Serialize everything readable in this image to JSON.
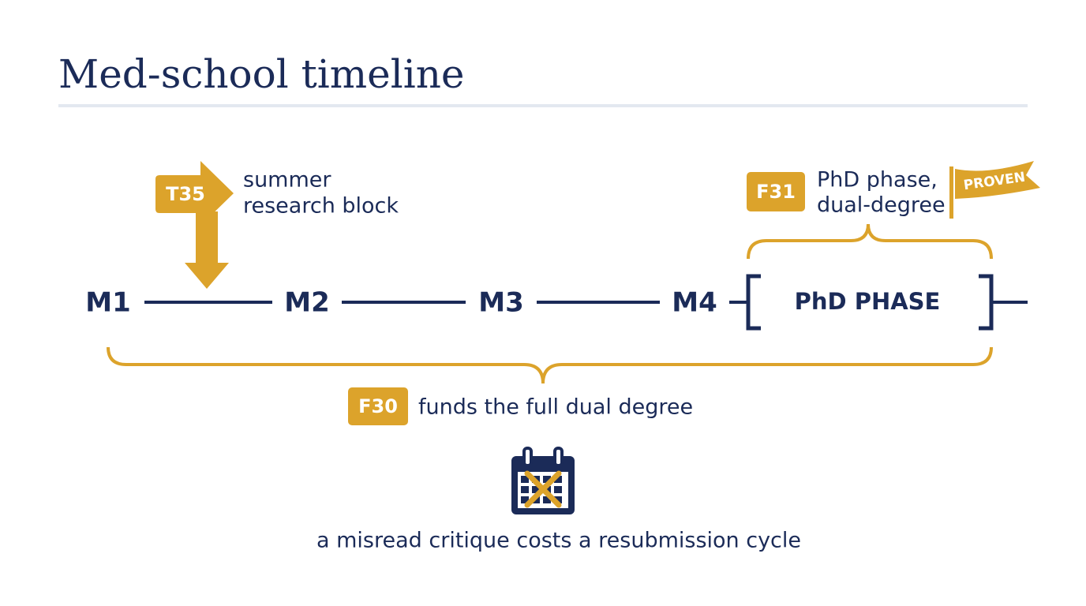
{
  "header": {
    "title": "Med-school timeline"
  },
  "timeline": {
    "stages": [
      "M1",
      "M2",
      "M3",
      "M4"
    ],
    "phase": "PhD PHASE"
  },
  "callouts": {
    "summer": {
      "badge": "T35",
      "lines": [
        "summer",
        "research block"
      ]
    },
    "phd": {
      "badge": "F31",
      "lines": [
        "PhD phase,",
        "dual-degree"
      ],
      "flag": "PROVEN"
    },
    "funding": {
      "badge": "F30",
      "text": "funds the full dual degree"
    }
  },
  "caption": "a misread critique costs a resubmission cycle"
}
